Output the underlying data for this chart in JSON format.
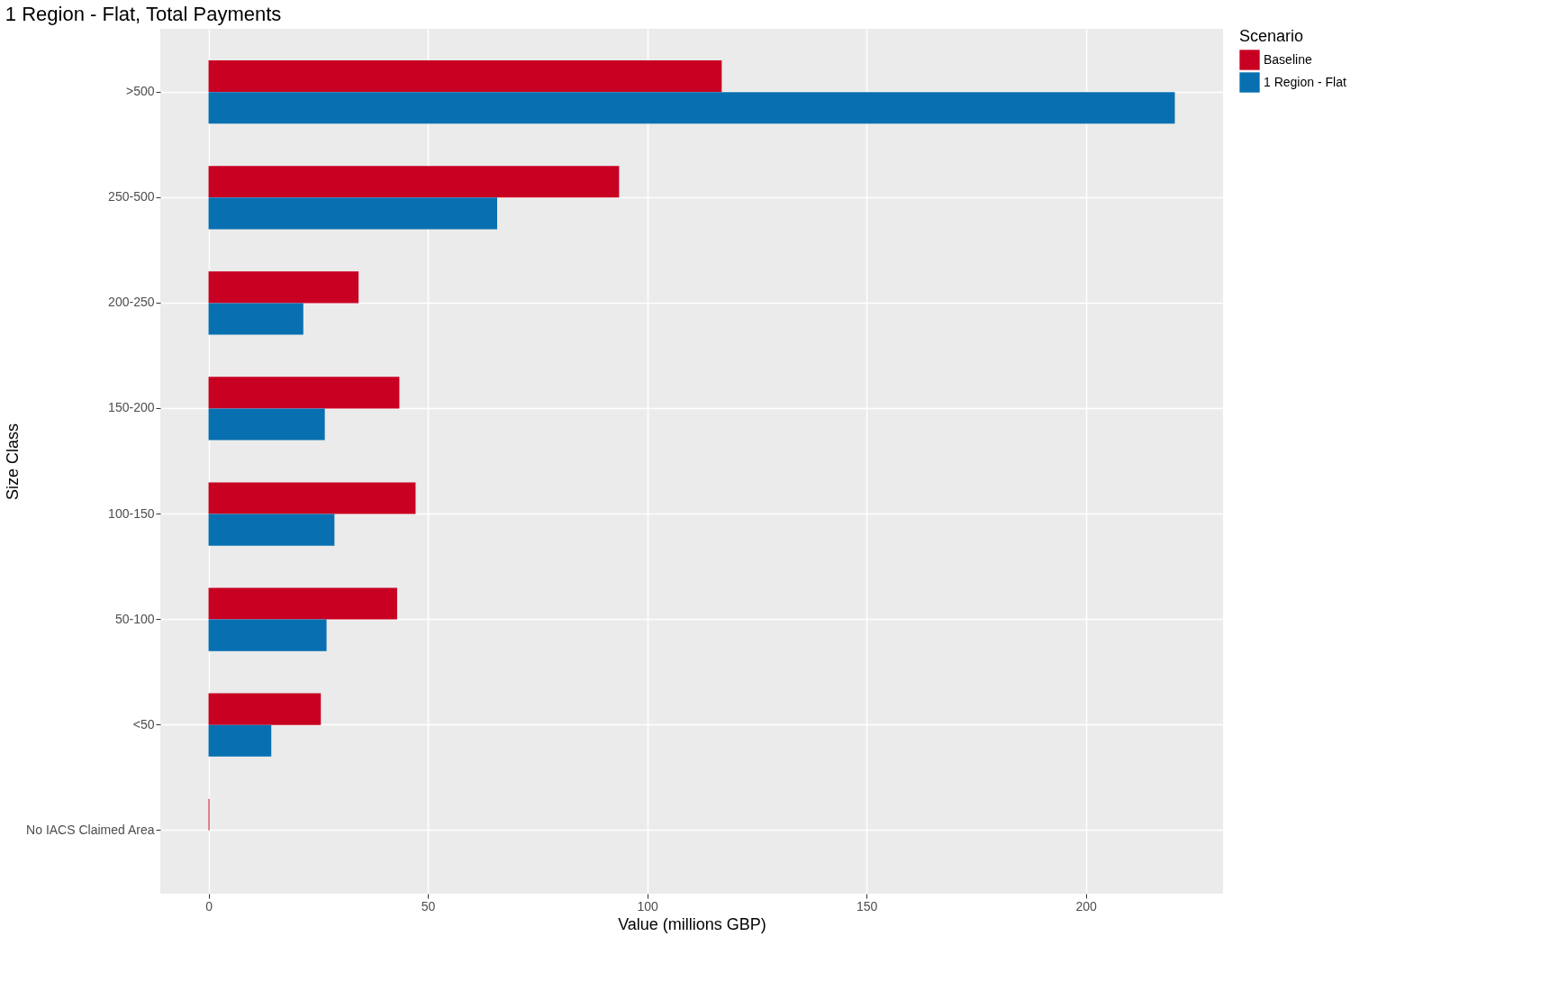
{
  "chart_data": {
    "type": "bar",
    "orientation": "horizontal",
    "title": "1 Region - Flat, Total Payments",
    "xlabel": "Value (millions GBP)",
    "ylabel": "Size Class",
    "legend_title": "Scenario",
    "categories": [
      ">500",
      "250-500",
      "200-250",
      "150-200",
      "100-150",
      "50-100",
      "<50",
      "No IACS Claimed Area"
    ],
    "series": [
      {
        "name": "Baseline",
        "color": "#c80022",
        "values": [
          117,
          93.6,
          34.2,
          43.5,
          47.2,
          43.0,
          25.6,
          0.2
        ]
      },
      {
        "name": "1 Region - Flat",
        "color": "#0870b1",
        "values": [
          220.3,
          65.8,
          21.6,
          26.5,
          28.7,
          26.9,
          14.3,
          null
        ]
      }
    ],
    "xlim": [
      -11,
      231.3
    ],
    "xticks": [
      0,
      50,
      100,
      150,
      200
    ],
    "grid": true,
    "legend": "right"
  }
}
